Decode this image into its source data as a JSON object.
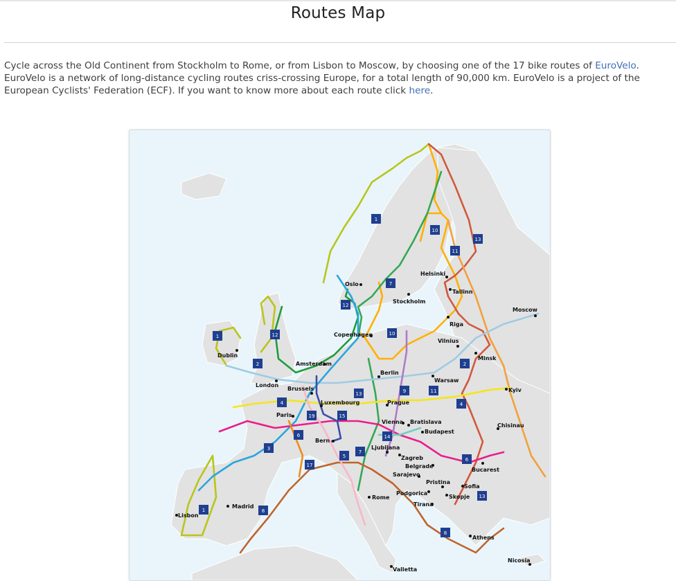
{
  "page": {
    "title": "Routes Map"
  },
  "intro": {
    "text_1": "Cycle across the Old Continent from Stockholm to Rome, or from Lisbon to Moscow, by choosing one of the 17 bike routes of ",
    "link_eurovelo": "EuroVelo",
    "text_2": ". EuroVelo is a network of long-distance cycling routes criss-crossing Europe, for a total length of 90,000 km. EuroVelo is a project of the European Cyclists' Federation (ECF). If you want to know more about each route click ",
    "link_here": "here",
    "text_3": "."
  },
  "colors": {
    "link": "#3f6fb6",
    "sea": "#e9f5fb",
    "land": "#e2e2e2",
    "badge": "#1f3f8f"
  },
  "map": {
    "cities": {
      "oslo": "Oslo",
      "helsinki": "Helsinki",
      "tallinn": "Tallinn",
      "stockholm": "Stockholm",
      "moscow": "Moscow",
      "riga": "Riga",
      "copenhagen": "Copenhagen",
      "vilnius": "Vilnius",
      "dublin": "Dublin",
      "minsk": "Minsk",
      "amsterdam": "Amsterdam",
      "berlin": "Berlin",
      "london": "London",
      "brussels": "Brussels",
      "warsaw": "Warsaw",
      "kyiv": "Kyiv",
      "luxembourg": "Luxembourg",
      "prague": "Prague",
      "paris": "Paris",
      "vienna": "Vienna",
      "bratislava": "Bratislava",
      "chisinau": "Chisinau",
      "budapest": "Budapest",
      "bern": "Bern",
      "ljubljana": "Ljubljana",
      "zagreb": "Zagreb",
      "belgrade": "Belgrade",
      "bucarest": "Bucarest",
      "sarajevo": "Sarajevo",
      "pristina": "Pristina",
      "sofia": "Sofia",
      "madrid": "Madrid",
      "rome": "Rome",
      "podgorica": "Podgorica",
      "skopje": "Skopje",
      "tirana": "Tirana",
      "lisbon": "Lisbon",
      "athens": "Athens",
      "nicosia": "Nicosia",
      "valletta": "Valletta"
    },
    "route_numbers": [
      "1",
      "10",
      "13",
      "11",
      "7",
      "12",
      "10",
      "1",
      "12",
      "2",
      "2",
      "13",
      "9",
      "11",
      "4",
      "4",
      "19",
      "15",
      "6",
      "14",
      "3",
      "6",
      "17",
      "5",
      "7",
      "1",
      "8",
      "13",
      "8"
    ]
  }
}
